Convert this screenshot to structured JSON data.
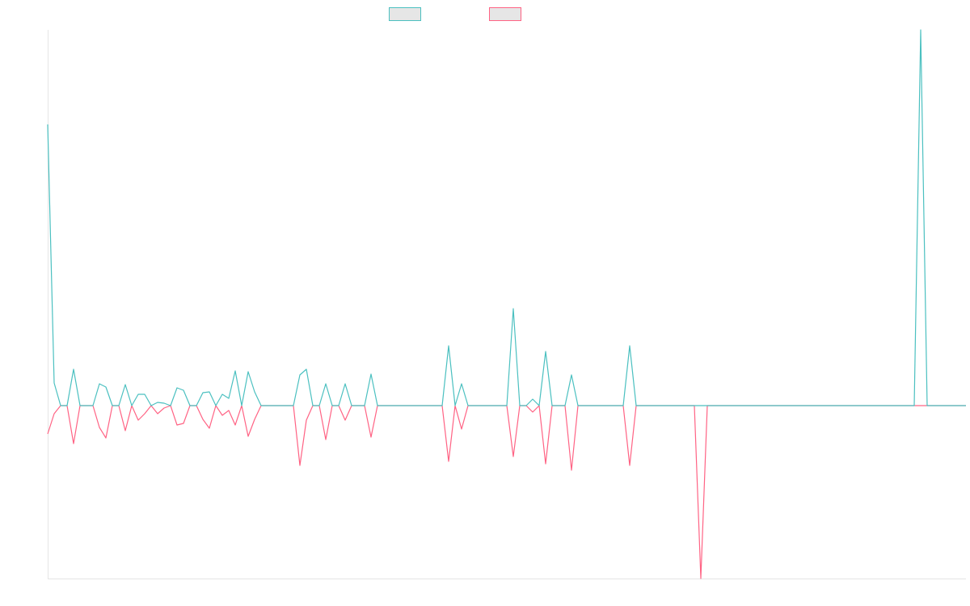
{
  "chart_data": {
    "type": "line",
    "categories": [
      null,
      null,
      null,
      null,
      null,
      null,
      null,
      null,
      null,
      null,
      null,
      null,
      null,
      null,
      null,
      null,
      null,
      null,
      null,
      null,
      null,
      null,
      null,
      null,
      null,
      null,
      null,
      null,
      null,
      null,
      null,
      null,
      null,
      null,
      null,
      null,
      null,
      null,
      null,
      null,
      null,
      null,
      null,
      null,
      null,
      null,
      null,
      null,
      null,
      null,
      null,
      null,
      null,
      null,
      null,
      null,
      null,
      null,
      null,
      null,
      null,
      null,
      null,
      null,
      null,
      null,
      null,
      null,
      null,
      null,
      null,
      null,
      null,
      null,
      null,
      null,
      null,
      null,
      null,
      null,
      null,
      null,
      null,
      null,
      null,
      null,
      null,
      null,
      null,
      null,
      null,
      null,
      null,
      null,
      null,
      null,
      null,
      null,
      null,
      null,
      null,
      null,
      null,
      null,
      null,
      null,
      null,
      null,
      null,
      null,
      null,
      null,
      null,
      null,
      null,
      null,
      null,
      null,
      null,
      null,
      null,
      null,
      null,
      null,
      null,
      null,
      null,
      null,
      null,
      null,
      null,
      null,
      null,
      null,
      null,
      null,
      null,
      null,
      null,
      null,
      null,
      null,
      null
    ],
    "series": [
      {
        "color": "#4bc0c0",
        "values": [
          348,
          28,
          0,
          0,
          45,
          0,
          0,
          0,
          27,
          23,
          0,
          0,
          26,
          0,
          14,
          14,
          0,
          4,
          3,
          0,
          22,
          19,
          0,
          0,
          16,
          17,
          0,
          14,
          9,
          43,
          0,
          42,
          17,
          0,
          0,
          0,
          0,
          0,
          0,
          38,
          45,
          0,
          0,
          27,
          0,
          0,
          27,
          0,
          0,
          0,
          39,
          0,
          0,
          0,
          0,
          0,
          0,
          0,
          0,
          0,
          0,
          0,
          74,
          0,
          27,
          0,
          0,
          0,
          0,
          0,
          0,
          0,
          120,
          0,
          0,
          8,
          0,
          67,
          0,
          0,
          0,
          38,
          0,
          0,
          0,
          0,
          0,
          0,
          0,
          0,
          74,
          0,
          0,
          0,
          0,
          0,
          0,
          0,
          0,
          0,
          0,
          0,
          0,
          0,
          0,
          0,
          0,
          0,
          0,
          0,
          0,
          0,
          0,
          0,
          0,
          0,
          0,
          0,
          0,
          0,
          0,
          0,
          0,
          0,
          0,
          0,
          0,
          0,
          0,
          0,
          0,
          0,
          0,
          0,
          0,
          465,
          0,
          0,
          0,
          0,
          0,
          0,
          0
        ]
      },
      {
        "color": "#ff6384",
        "values": [
          -35,
          -10,
          0,
          0,
          -47,
          0,
          0,
          0,
          -27,
          -40,
          0,
          0,
          -31,
          0,
          -18,
          -10,
          0,
          -10,
          -3,
          0,
          -24,
          -22,
          0,
          0,
          -17,
          -28,
          0,
          -12,
          -6,
          -24,
          0,
          -38,
          -17,
          0,
          0,
          0,
          0,
          0,
          0,
          -74,
          -18,
          0,
          0,
          -42,
          0,
          0,
          -18,
          0,
          0,
          0,
          -39,
          0,
          0,
          0,
          0,
          0,
          0,
          0,
          0,
          0,
          0,
          0,
          -69,
          0,
          -29,
          0,
          0,
          0,
          0,
          0,
          0,
          0,
          -63,
          0,
          0,
          -8,
          0,
          -72,
          0,
          0,
          0,
          -80,
          0,
          0,
          0,
          0,
          0,
          0,
          0,
          0,
          -74,
          0,
          0,
          0,
          0,
          0,
          0,
          0,
          0,
          0,
          0,
          -214,
          0,
          0,
          0,
          0,
          0,
          0,
          0,
          0,
          0,
          0,
          0,
          0,
          0,
          0,
          0,
          0,
          0,
          0,
          0,
          0,
          0,
          0,
          0,
          0,
          0,
          0,
          0,
          0,
          0,
          0,
          0,
          0,
          0,
          0,
          0,
          0,
          0,
          0,
          0,
          0,
          0
        ]
      }
    ],
    "ylim": [
      -214,
      465
    ]
  }
}
